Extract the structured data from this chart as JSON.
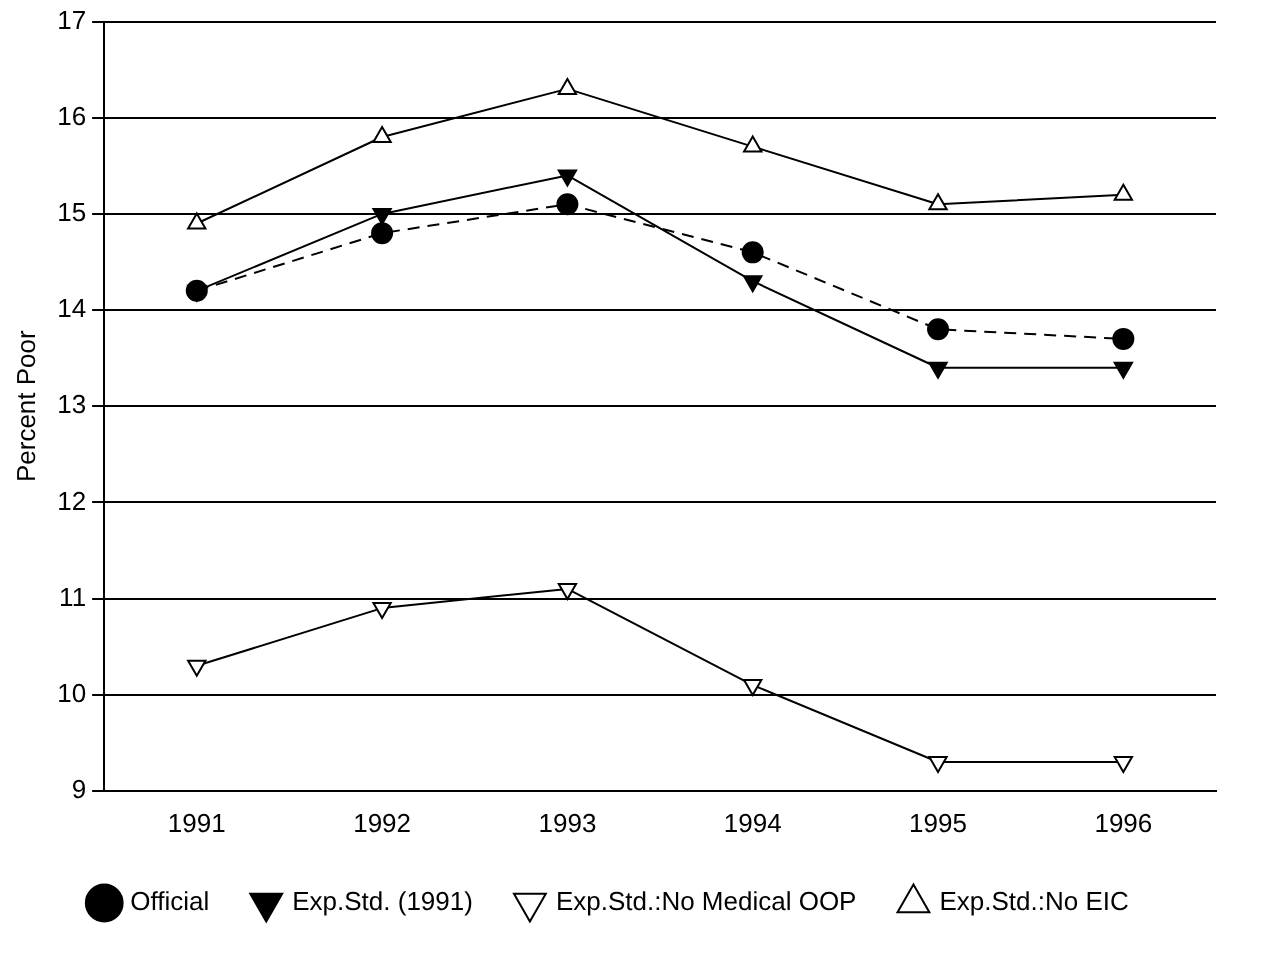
{
  "chart_data": {
    "type": "line",
    "ylabel": "Percent Poor",
    "categories": [
      "1991",
      "1992",
      "1993",
      "1994",
      "1995",
      "1996"
    ],
    "ylim": [
      9,
      17
    ],
    "yticks": [
      9,
      10,
      11,
      12,
      13,
      14,
      15,
      16,
      17
    ],
    "grid": "y",
    "legend": "bottom",
    "series": [
      {
        "name": "Official",
        "color": "#000000",
        "marker": "circle",
        "line_style": "dashed",
        "values": [
          14.2,
          14.8,
          15.1,
          14.6,
          13.8,
          13.7
        ]
      },
      {
        "name": "Exp.Std. (1991)",
        "color": "#000000",
        "marker": "triangle-down",
        "line_style": "solid",
        "values": [
          14.2,
          15.0,
          15.4,
          14.3,
          13.4,
          13.4
        ]
      },
      {
        "name": "Exp.Std.:No Medical OOP",
        "color": "#000000",
        "marker": "triangle-down-open",
        "line_style": "solid",
        "values": [
          10.3,
          10.9,
          11.1,
          10.1,
          9.3,
          9.3
        ]
      },
      {
        "name": "Exp.Std.:No EIC",
        "color": "#000000",
        "marker": "triangle-open",
        "line_style": "solid",
        "values": [
          14.9,
          15.8,
          16.3,
          15.7,
          15.1,
          15.2
        ]
      }
    ]
  }
}
